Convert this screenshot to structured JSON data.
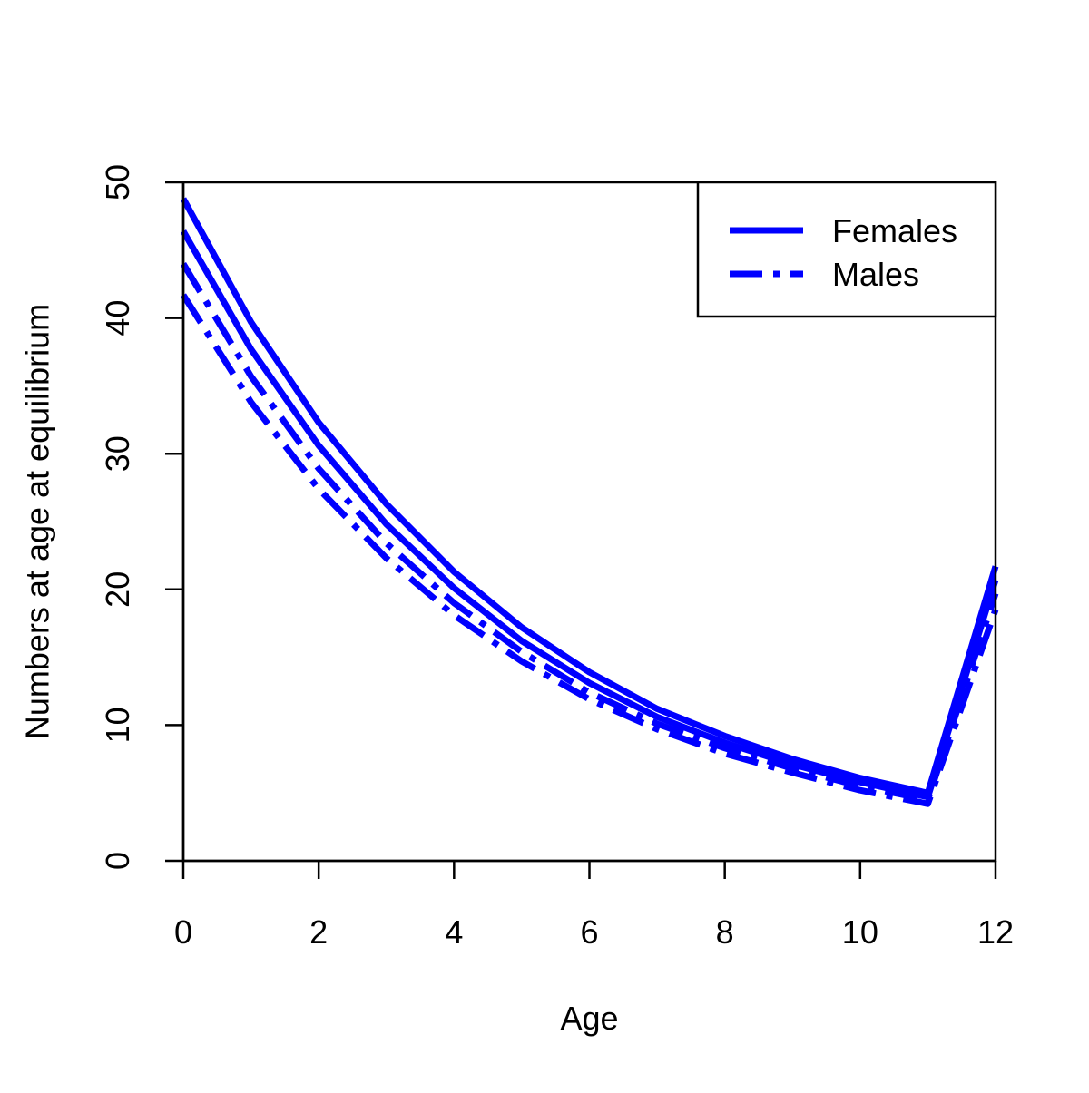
{
  "chart_data": {
    "type": "line",
    "title": "",
    "xlabel": "Age",
    "ylabel": "Numbers at age at equilibrium",
    "xlim": [
      0,
      12
    ],
    "ylim": [
      0,
      50
    ],
    "x_ticks": [
      "0",
      "2",
      "4",
      "6",
      "8",
      "10",
      "12"
    ],
    "y_ticks": [
      "0",
      "10",
      "20",
      "30",
      "40",
      "50"
    ],
    "grid": false,
    "legend_position": "top-right",
    "legend": [
      {
        "label": "Females",
        "line_style": "solid"
      },
      {
        "label": "Males",
        "line_style": "dashdot"
      }
    ],
    "line_color": "#0000ff",
    "x": [
      0,
      1,
      2,
      3,
      4,
      5,
      6,
      7,
      8,
      9,
      10,
      11,
      12
    ],
    "series": [
      {
        "line_style": "solid",
        "values": [
          48.8,
          39.7,
          32.3,
          26.3,
          21.3,
          17.2,
          13.9,
          11.2,
          9.2,
          7.5,
          6.1,
          5.0,
          21.7
        ]
      },
      {
        "line_style": "solid",
        "values": [
          46.4,
          37.7,
          30.6,
          24.8,
          20.1,
          16.2,
          13.1,
          10.6,
          8.7,
          7.1,
          5.8,
          4.7,
          20.7
        ]
      },
      {
        "line_style": "dashdot",
        "values": [
          44.0,
          35.7,
          28.9,
          23.4,
          19.0,
          15.4,
          12.4,
          10.1,
          8.3,
          6.8,
          5.5,
          4.5,
          19.7
        ]
      },
      {
        "line_style": "dashdot",
        "values": [
          41.7,
          33.8,
          27.4,
          22.3,
          18.1,
          14.7,
          11.9,
          9.7,
          7.9,
          6.5,
          5.2,
          4.2,
          18.5
        ]
      }
    ]
  }
}
